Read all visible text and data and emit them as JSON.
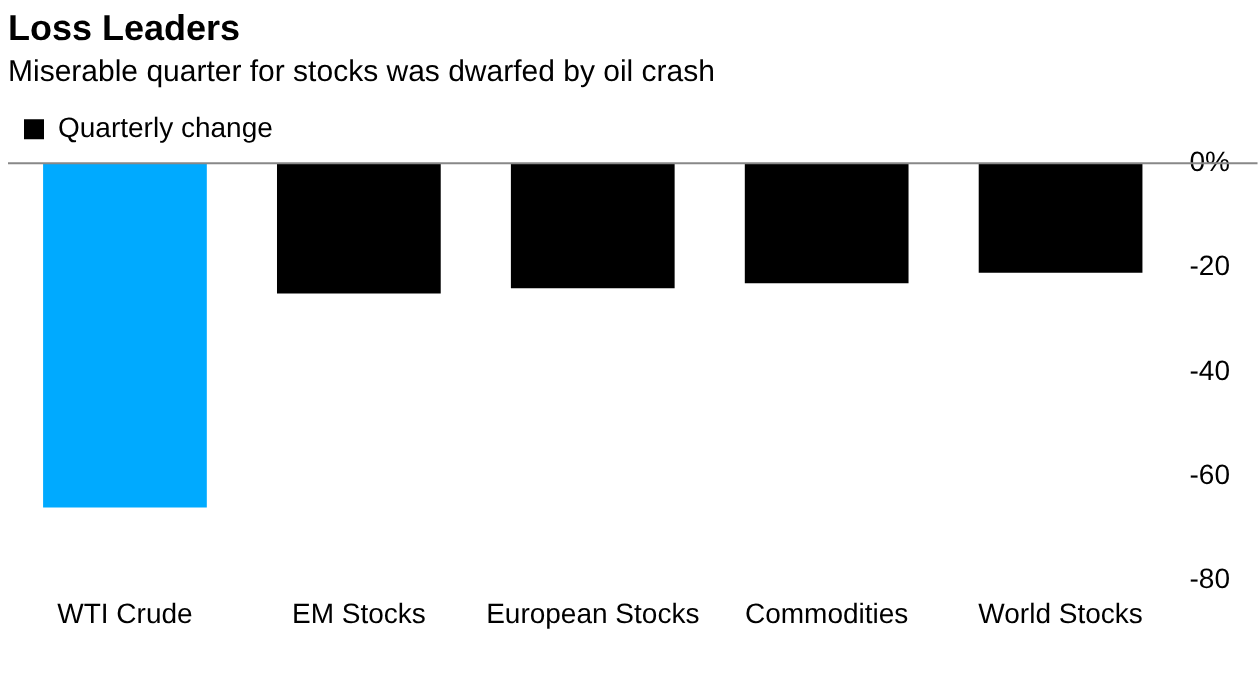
{
  "chart_data": {
    "type": "bar",
    "title": "Loss Leaders",
    "subtitle": "Miserable quarter for stocks was dwarfed by oil crash",
    "categories": [
      "WTI Crude",
      "EM Stocks",
      "European Stocks",
      "Commodities",
      "World Stocks"
    ],
    "series": [
      {
        "name": "Quarterly change",
        "color": "#000000",
        "colors": [
          "#00aaff",
          "#000000",
          "#000000",
          "#000000",
          "#000000"
        ],
        "values": [
          -66,
          -25,
          -24,
          -23,
          -21
        ]
      }
    ],
    "ylim": [
      -80,
      0
    ],
    "yticks": [
      {
        "value": 0,
        "label": "0%"
      },
      -20,
      -40,
      -60,
      -80
    ],
    "grid": false,
    "legend": "top left"
  }
}
